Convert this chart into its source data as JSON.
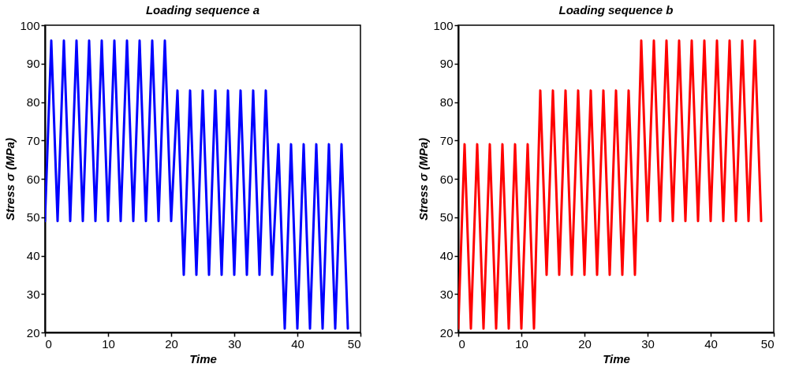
{
  "chart_data": [
    {
      "type": "line",
      "title": "Loading sequence a",
      "xlabel": "Time",
      "ylabel": "Stress σ (MPa)",
      "xlim": [
        0,
        50
      ],
      "xticks": [
        0,
        10,
        20,
        30,
        40,
        50
      ],
      "ylim": [
        20,
        100
      ],
      "yticks": [
        20,
        30,
        40,
        50,
        60,
        70,
        80,
        90,
        100
      ],
      "grid": false,
      "line_style": "solid",
      "marker": "none",
      "x": [
        0,
        1,
        2,
        3,
        4,
        5,
        6,
        7,
        8,
        9,
        10,
        11,
        12,
        13,
        14,
        15,
        16,
        17,
        18,
        19,
        20,
        21,
        22,
        23,
        24,
        25,
        26,
        27,
        28,
        29,
        30,
        31,
        32,
        33,
        34,
        35,
        36,
        37,
        38,
        39,
        40,
        41,
        42,
        43,
        44,
        45,
        46,
        47,
        48
      ],
      "series": [
        {
          "color": "#0000ff",
          "values": [
            49,
            96,
            49,
            96,
            49,
            96,
            49,
            96,
            49,
            96,
            49,
            96,
            49,
            96,
            49,
            96,
            49,
            96,
            49,
            96,
            49,
            83,
            35,
            83,
            35,
            83,
            35,
            83,
            35,
            83,
            35,
            83,
            35,
            83,
            35,
            83,
            35,
            69,
            21,
            69,
            21,
            69,
            21,
            69,
            21,
            69,
            21,
            69,
            21
          ]
        }
      ]
    },
    {
      "type": "line",
      "title": "Loading sequence b",
      "xlabel": "Time",
      "ylabel": "Stress σ (MPa)",
      "xlim": [
        0,
        50
      ],
      "xticks": [
        0,
        10,
        20,
        30,
        40,
        50
      ],
      "ylim": [
        20,
        100
      ],
      "yticks": [
        20,
        30,
        40,
        50,
        60,
        70,
        80,
        90,
        100
      ],
      "grid": false,
      "line_style": "solid",
      "marker": "none",
      "x": [
        0,
        1,
        2,
        3,
        4,
        5,
        6,
        7,
        8,
        9,
        10,
        11,
        12,
        13,
        14,
        15,
        16,
        17,
        18,
        19,
        20,
        21,
        22,
        23,
        24,
        25,
        26,
        27,
        28,
        29,
        30,
        31,
        32,
        33,
        34,
        35,
        36,
        37,
        38,
        39,
        40,
        41,
        42,
        43,
        44,
        45,
        46,
        47,
        48
      ],
      "series": [
        {
          "color": "#ff0000",
          "values": [
            21,
            69,
            21,
            69,
            21,
            69,
            21,
            69,
            21,
            69,
            21,
            69,
            21,
            83,
            35,
            83,
            35,
            83,
            35,
            83,
            35,
            83,
            35,
            83,
            35,
            83,
            35,
            83,
            35,
            96,
            49,
            96,
            49,
            96,
            49,
            96,
            49,
            96,
            49,
            96,
            49,
            96,
            49,
            96,
            49,
            96,
            49,
            96,
            49
          ]
        }
      ]
    }
  ]
}
